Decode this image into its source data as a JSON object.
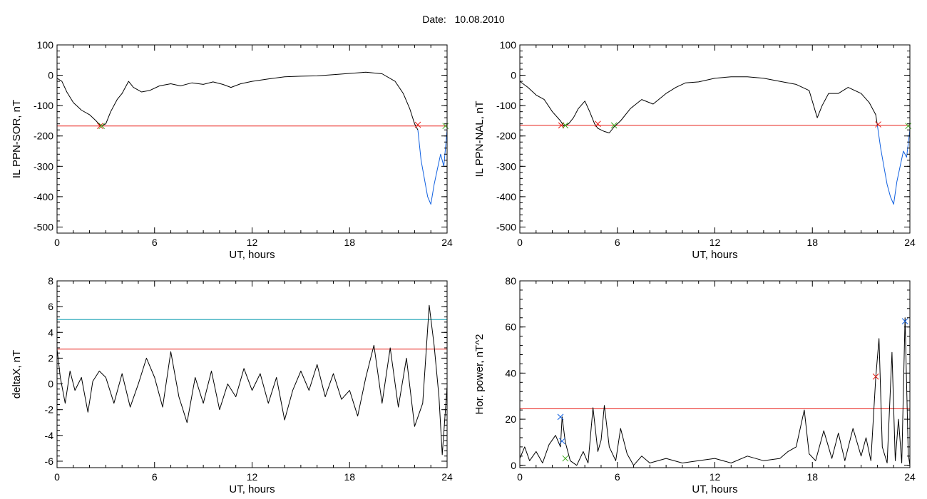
{
  "header": {
    "date_label": "Date:",
    "date_value": "10.08.2010"
  },
  "colors": {
    "data_line": "#000000",
    "threshold_red": "#e8211a",
    "threshold_cyan": "#14a0b4",
    "substorm_blue": "#1060e0",
    "marker_green": "#3aa81a"
  },
  "chart_data": [
    {
      "id": "ppn-sor",
      "type": "line",
      "title": "",
      "xlabel": "UT, hours",
      "ylabel": "IL PPN-SOR, nT",
      "xlim": [
        0,
        24
      ],
      "ylim": [
        -520,
        100
      ],
      "xticks": [
        0,
        6,
        12,
        18,
        24
      ],
      "yticks": [
        100,
        0,
        -100,
        -200,
        -300,
        -400,
        -500
      ],
      "grid": false,
      "thresholds": [
        {
          "y": -167,
          "color": "red"
        }
      ],
      "series": [
        {
          "color": "black",
          "x": [
            0,
            0.3,
            0.6,
            1.0,
            1.5,
            2.0,
            2.4,
            2.7,
            3.0,
            3.3,
            3.7,
            4.0,
            4.4,
            4.7,
            5.2,
            5.7,
            6.3,
            7.0,
            7.6,
            8.3,
            9.0,
            9.6,
            10.2,
            10.7,
            11.3,
            12,
            13,
            14,
            15,
            16,
            17,
            18,
            19,
            20,
            20.8,
            21.3,
            21.7,
            22.0,
            22.2
          ],
          "y": [
            -10,
            -20,
            -55,
            -90,
            -115,
            -130,
            -150,
            -168,
            -160,
            -120,
            -80,
            -60,
            -20,
            -40,
            -55,
            -50,
            -35,
            -28,
            -35,
            -25,
            -30,
            -22,
            -30,
            -40,
            -28,
            -20,
            -12,
            -5,
            -3,
            -2,
            2,
            6,
            10,
            5,
            -20,
            -60,
            -110,
            -160,
            -180
          ]
        }
      ],
      "substorm_series": {
        "color": "blue",
        "x": [
          22.2,
          22.4,
          22.6,
          22.8,
          23.0,
          23.2,
          23.4,
          23.6,
          23.8,
          24
        ],
        "y": [
          -180,
          -280,
          -340,
          -400,
          -425,
          -360,
          -310,
          -260,
          -300,
          -180
        ]
      },
      "markers": [
        {
          "x": 2.65,
          "y": -167,
          "color": "red"
        },
        {
          "x": 2.75,
          "y": -167,
          "color": "green"
        },
        {
          "x": 22.2,
          "y": -163,
          "color": "red"
        },
        {
          "x": 23.9,
          "y": -167,
          "color": "green"
        }
      ]
    },
    {
      "id": "ppn-nal",
      "type": "line",
      "title": "",
      "xlabel": "UT, hours",
      "ylabel": "IL PPN-NAL, nT",
      "xlim": [
        0,
        24
      ],
      "ylim": [
        -520,
        100
      ],
      "xticks": [
        0,
        6,
        12,
        18,
        24
      ],
      "yticks": [
        100,
        0,
        -100,
        -200,
        -300,
        -400,
        -500
      ],
      "grid": false,
      "thresholds": [
        {
          "y": -165,
          "color": "red"
        }
      ],
      "series": [
        {
          "color": "black",
          "x": [
            0,
            0.5,
            1.0,
            1.5,
            2.0,
            2.5,
            2.7,
            3.0,
            3.3,
            3.6,
            4.0,
            4.3,
            4.6,
            4.8,
            5.2,
            5.5,
            5.8,
            6.2,
            6.8,
            7.5,
            8.2,
            9.0,
            9.6,
            10.2,
            11,
            12,
            13,
            14,
            15,
            16,
            17,
            17.8,
            18.3,
            18.6,
            19.0,
            19.6,
            20.2,
            21,
            21.5,
            21.9,
            22.0
          ],
          "y": [
            -20,
            -40,
            -65,
            -80,
            -120,
            -150,
            -167,
            -160,
            -140,
            -110,
            -85,
            -120,
            -160,
            -175,
            -185,
            -190,
            -170,
            -150,
            -110,
            -80,
            -95,
            -60,
            -40,
            -25,
            -22,
            -10,
            -5,
            -5,
            -10,
            -20,
            -30,
            -50,
            -140,
            -100,
            -60,
            -60,
            -40,
            -60,
            -90,
            -130,
            -165
          ]
        }
      ],
      "substorm_series": {
        "color": "blue",
        "x": [
          22.0,
          22.2,
          22.4,
          22.6,
          22.8,
          23.0,
          23.2,
          23.4,
          23.6,
          23.8,
          24
        ],
        "y": [
          -165,
          -240,
          -300,
          -360,
          -400,
          -425,
          -350,
          -300,
          -250,
          -270,
          -180
        ]
      },
      "markers": [
        {
          "x": 2.55,
          "y": -165,
          "color": "red"
        },
        {
          "x": 2.8,
          "y": -165,
          "color": "green"
        },
        {
          "x": 4.8,
          "y": -160,
          "color": "red"
        },
        {
          "x": 5.8,
          "y": -165,
          "color": "green"
        },
        {
          "x": 22.05,
          "y": -162,
          "color": "red"
        },
        {
          "x": 23.9,
          "y": -167,
          "color": "green"
        }
      ]
    },
    {
      "id": "deltax",
      "type": "line",
      "title": "",
      "xlabel": "UT, hours",
      "ylabel": "deltaX, nT",
      "xlim": [
        0,
        24
      ],
      "ylim": [
        -6.5,
        8
      ],
      "xticks": [
        0,
        6,
        12,
        18,
        24
      ],
      "yticks": [
        8,
        6,
        4,
        2,
        0,
        -2,
        -4,
        -6
      ],
      "grid": false,
      "thresholds": [
        {
          "y": 5,
          "color": "cyan"
        },
        {
          "y": 2.7,
          "color": "red"
        }
      ],
      "series": [
        {
          "color": "black",
          "x": [
            0,
            0.2,
            0.5,
            0.8,
            1.1,
            1.5,
            1.9,
            2.2,
            2.6,
            3.0,
            3.5,
            4.0,
            4.5,
            5.0,
            5.5,
            6.0,
            6.5,
            7.0,
            7.5,
            8.0,
            8.5,
            9.0,
            9.5,
            10.0,
            10.5,
            11.0,
            11.5,
            12.0,
            12.5,
            13.0,
            13.5,
            14.0,
            14.5,
            15.0,
            15.5,
            16.0,
            16.5,
            17.0,
            17.5,
            18.0,
            18.5,
            19.0,
            19.5,
            20.0,
            20.5,
            21.0,
            21.5,
            22.0,
            22.5,
            22.9,
            23.2,
            23.5,
            23.7,
            24
          ],
          "y": [
            2.7,
            0.5,
            -1.5,
            1.0,
            -0.5,
            0.5,
            -2.2,
            0.2,
            1.0,
            0.5,
            -1.5,
            0.8,
            -1.8,
            0,
            2.0,
            0.5,
            -1.8,
            2.5,
            -1.0,
            -3.0,
            0.5,
            -1.5,
            1.0,
            -2.0,
            0,
            -1.0,
            1.2,
            -0.5,
            0.8,
            -1.5,
            0.5,
            -2.8,
            -0.5,
            1.0,
            -0.5,
            1.5,
            -1.0,
            0.8,
            -1.2,
            -0.5,
            -2.5,
            0.5,
            3.0,
            -1.5,
            2.8,
            -1.8,
            2.0,
            -3.3,
            -1.5,
            6.1,
            3.0,
            -1.0,
            -5.5,
            -0.2
          ]
        }
      ],
      "markers": []
    },
    {
      "id": "hor-power",
      "type": "line",
      "title": "",
      "xlabel": "UT, hours",
      "ylabel": "Hor. power, nT^2",
      "xlim": [
        0,
        24
      ],
      "ylim": [
        -1,
        80
      ],
      "xticks": [
        0,
        6,
        12,
        18,
        24
      ],
      "yticks": [
        80,
        60,
        40,
        20,
        0
      ],
      "grid": false,
      "thresholds": [
        {
          "y": 24.5,
          "color": "red"
        }
      ],
      "series": [
        {
          "color": "black",
          "x": [
            0,
            0.3,
            0.6,
            1.0,
            1.4,
            1.8,
            2.2,
            2.5,
            2.6,
            2.8,
            3.1,
            3.5,
            3.9,
            4.2,
            4.5,
            4.8,
            5.0,
            5.2,
            5.5,
            5.9,
            6.2,
            6.6,
            7.0,
            7.5,
            8.0,
            9.0,
            10,
            11,
            12,
            13,
            14,
            15,
            16,
            16.5,
            17,
            17.5,
            17.8,
            18.2,
            18.7,
            19.2,
            19.6,
            20.0,
            20.5,
            21.0,
            21.3,
            21.6,
            21.9,
            22.1,
            22.3,
            22.6,
            22.9,
            23.1,
            23.3,
            23.5,
            23.7,
            23.9,
            24
          ],
          "y": [
            3,
            8,
            2,
            6,
            1,
            9,
            13,
            8,
            21,
            10,
            2,
            0,
            6,
            1,
            25,
            6,
            11,
            26,
            8,
            2,
            16,
            5,
            0,
            4,
            1,
            3,
            1,
            2,
            3,
            1,
            4,
            2,
            3,
            6,
            8,
            24,
            5,
            2,
            15,
            3,
            14,
            2,
            16,
            4,
            12,
            2,
            38,
            55,
            8,
            1,
            49,
            2,
            20,
            1,
            64,
            5,
            0
          ]
        }
      ],
      "markers": [
        {
          "x": 2.5,
          "y": 21,
          "color": "blue"
        },
        {
          "x": 2.6,
          "y": 10.5,
          "color": "blue"
        },
        {
          "x": 2.8,
          "y": 3,
          "color": "green"
        },
        {
          "x": 21.9,
          "y": 38.5,
          "color": "red"
        },
        {
          "x": 23.7,
          "y": 62.5,
          "color": "blue"
        }
      ]
    }
  ]
}
